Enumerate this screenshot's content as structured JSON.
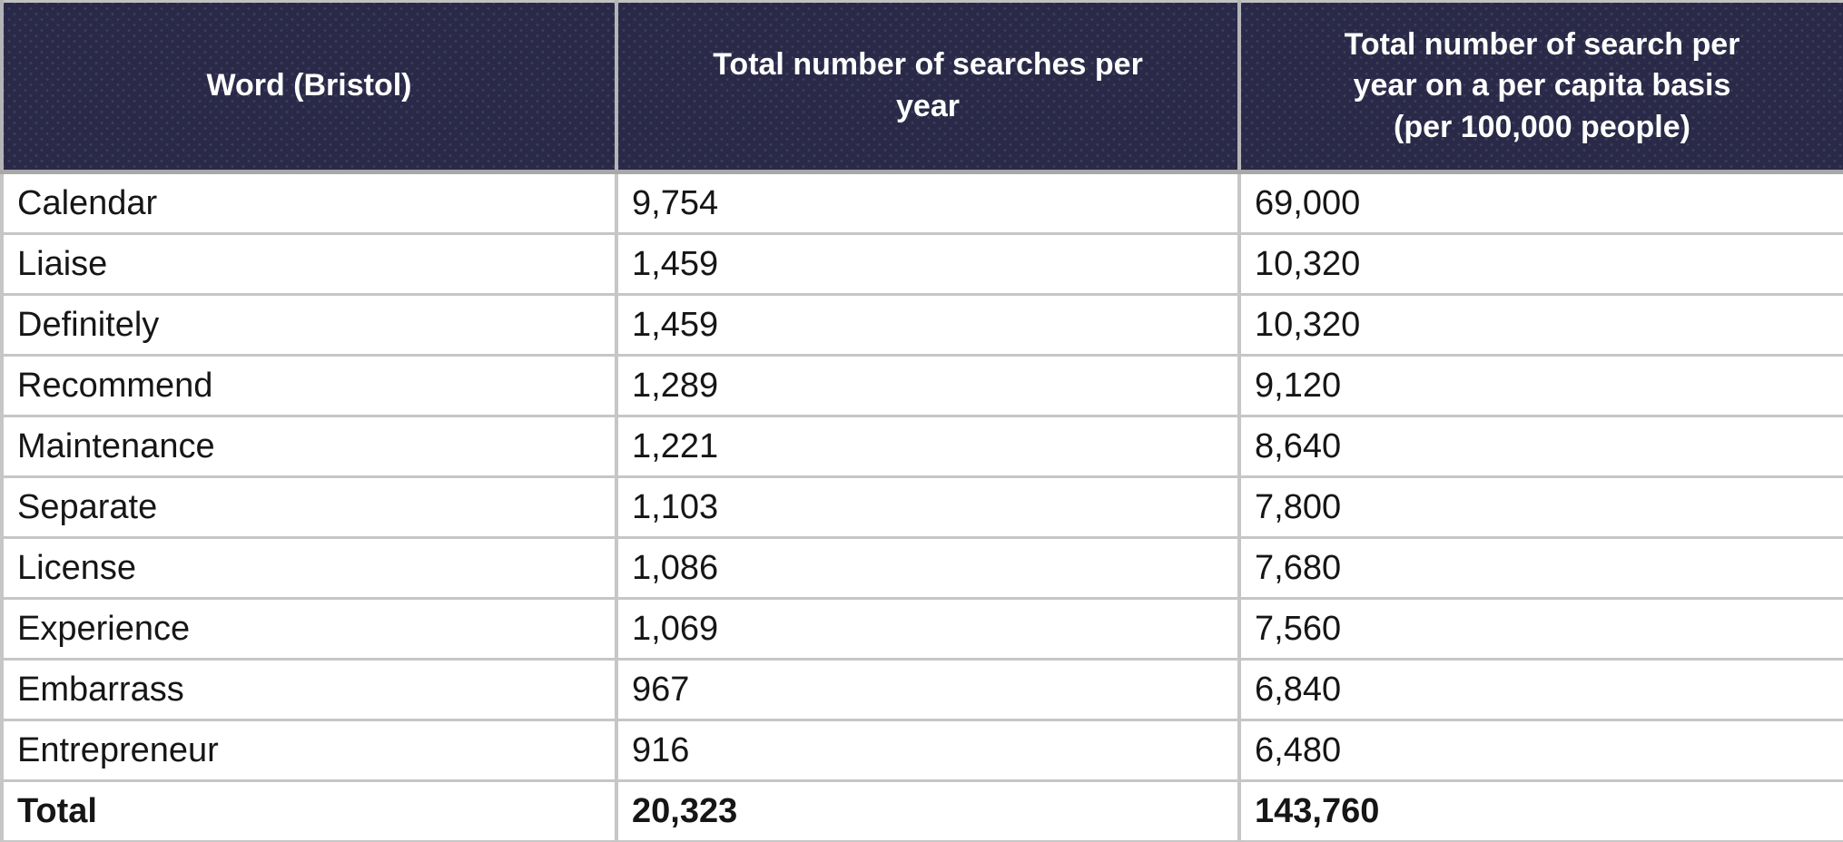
{
  "table": {
    "columns": [
      {
        "label": "Word (Bristol)",
        "lines": [
          "Word (Bristol)"
        ]
      },
      {
        "label": "Total number of searches per year",
        "lines": [
          "Total number of searches per",
          "year"
        ]
      },
      {
        "label": "Total number of search per year on a per capita basis (per 100,000 people)",
        "lines": [
          "Total number of search per",
          "year on a per capita basis",
          "(per 100,000 people)"
        ]
      }
    ],
    "rows": [
      {
        "word": "Calendar",
        "searches": "9,754",
        "per_capita": "69,000"
      },
      {
        "word": "Liaise",
        "searches": "1,459",
        "per_capita": "10,320"
      },
      {
        "word": "Definitely",
        "searches": "1,459",
        "per_capita": "10,320"
      },
      {
        "word": "Recommend",
        "searches": "1,289",
        "per_capita": "9,120"
      },
      {
        "word": "Maintenance",
        "searches": "1,221",
        "per_capita": "8,640"
      },
      {
        "word": "Separate",
        "searches": "1,103",
        "per_capita": "7,800"
      },
      {
        "word": "License",
        "searches": "1,086",
        "per_capita": "7,680"
      },
      {
        "word": "Experience",
        "searches": "1,069",
        "per_capita": "7,560"
      },
      {
        "word": "Embarrass",
        "searches": "967",
        "per_capita": "6,840"
      },
      {
        "word": "Entrepreneur",
        "searches": "916",
        "per_capita": "6,480"
      }
    ],
    "total_row": {
      "word": "Total",
      "searches": "20,323",
      "per_capita": "143,760"
    }
  },
  "colors": {
    "header_background": "#2a2a48",
    "header_dot": "#3d3d5f",
    "header_text": "#ffffff",
    "body_text": "#161616",
    "grid_line": "#c6c6c6"
  },
  "chart_data": {
    "type": "table",
    "columns": [
      "Word (Bristol)",
      "Total number of searches per year",
      "Total number of search per year on a per capita basis (per 100,000 people)"
    ],
    "rows": [
      [
        "Calendar",
        9754,
        69000
      ],
      [
        "Liaise",
        1459,
        10320
      ],
      [
        "Definitely",
        1459,
        10320
      ],
      [
        "Recommend",
        1289,
        9120
      ],
      [
        "Maintenance",
        1221,
        8640
      ],
      [
        "Separate",
        1103,
        7800
      ],
      [
        "License",
        1086,
        7680
      ],
      [
        "Experience",
        1069,
        7560
      ],
      [
        "Embarrass",
        967,
        6840
      ],
      [
        "Entrepreneur",
        916,
        6480
      ]
    ],
    "totals_row": [
      "Total",
      20323,
      143760
    ]
  }
}
